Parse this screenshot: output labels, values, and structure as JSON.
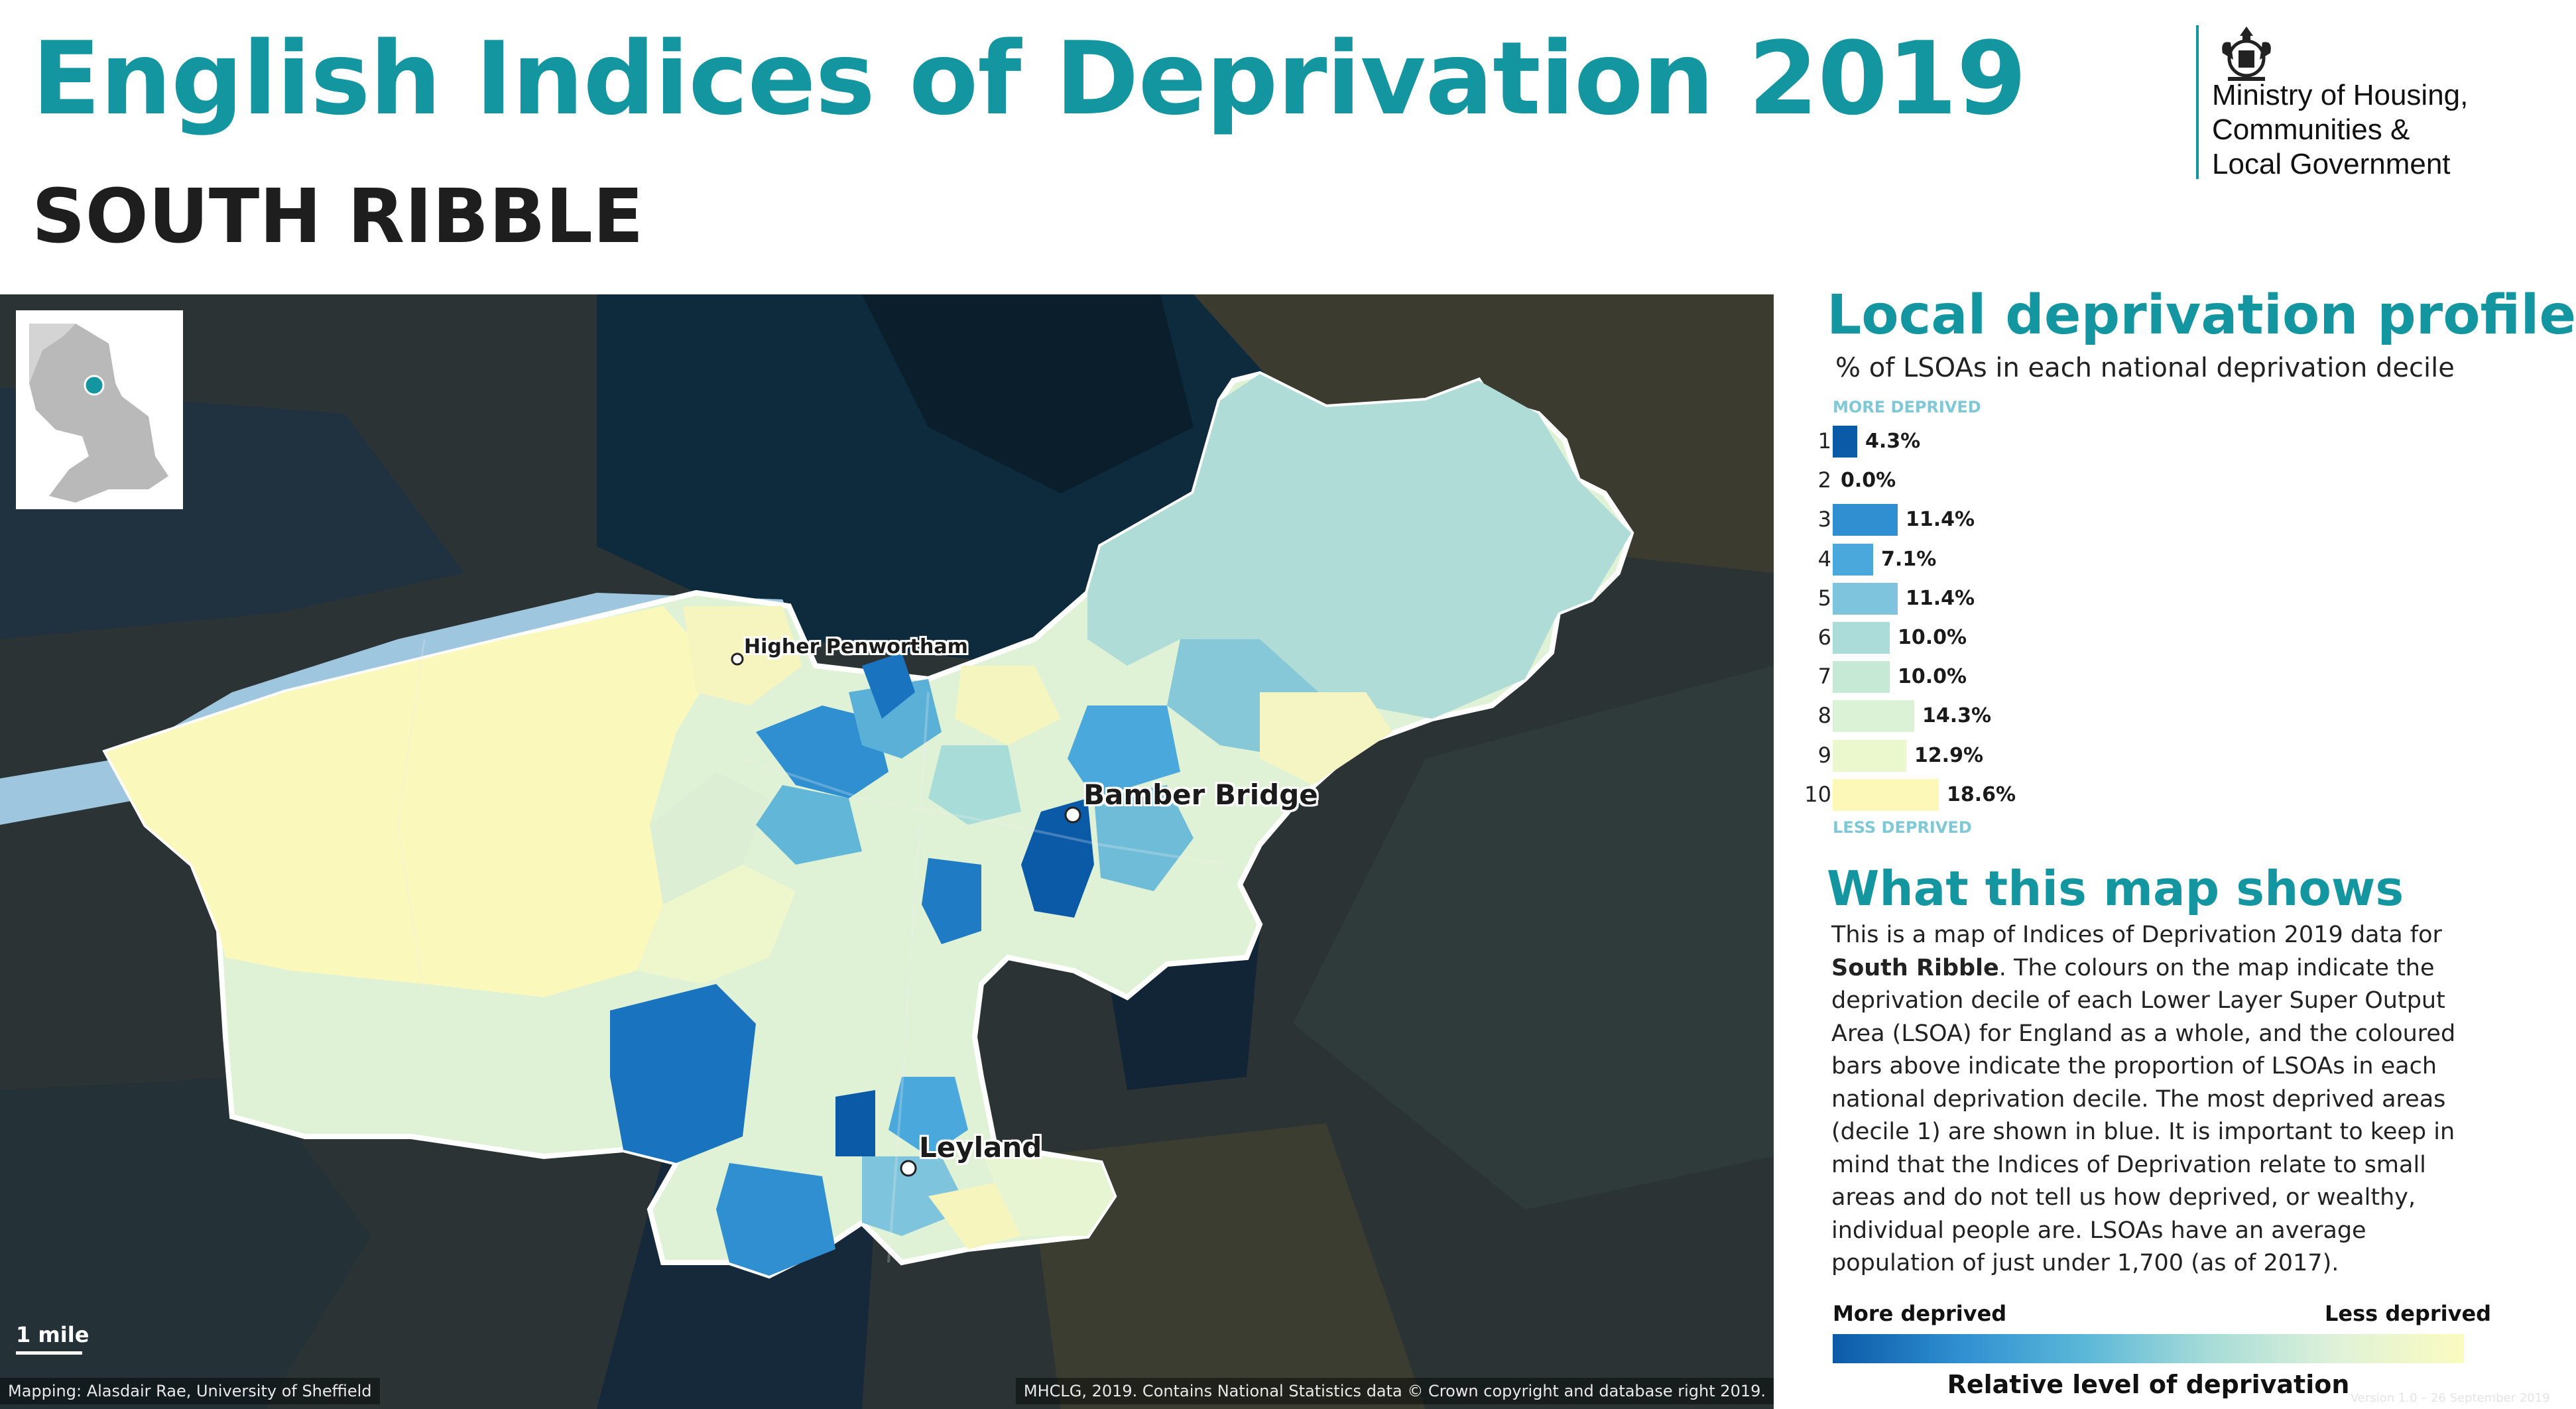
{
  "header": {
    "title": "English Indices of Deprivation 2019",
    "area": "SOUTH RIBBLE"
  },
  "logo": {
    "lines": [
      "Ministry of Housing,",
      "Communities &",
      "Local Government"
    ],
    "icon": "royal-crest-icon"
  },
  "map": {
    "places": [
      {
        "name": "Higher Penwortham",
        "size": "small"
      },
      {
        "name": "Bamber Bridge",
        "size": "large"
      },
      {
        "name": "Leyland",
        "size": "large"
      }
    ],
    "scale_label": "1 mile",
    "credit_left": "Mapping: Alasdair Rae, University of Sheffield",
    "credit_right": "MHCLG, 2019. Contains National Statistics data © Crown copyright and database right 2019."
  },
  "profile": {
    "title": "Local deprivation profile",
    "subtitle": "% of LSOAs in each national deprivation decile",
    "more_label": "MORE DEPRIVED",
    "less_label": "LESS DEPRIVED",
    "deciles": [
      {
        "decile": "1",
        "percent": 4.3,
        "label": "4.3%",
        "color": "#0b5aa8"
      },
      {
        "decile": "2",
        "percent": 0.0,
        "label": "0.0%",
        "color": "#1a73bf"
      },
      {
        "decile": "3",
        "percent": 11.4,
        "label": "11.4%",
        "color": "#2f8fd0"
      },
      {
        "decile": "4",
        "percent": 7.1,
        "label": "7.1%",
        "color": "#4aa8dc"
      },
      {
        "decile": "5",
        "percent": 11.4,
        "label": "11.4%",
        "color": "#7dc4dc"
      },
      {
        "decile": "6",
        "percent": 10.0,
        "label": "10.0%",
        "color": "#acdcda"
      },
      {
        "decile": "7",
        "percent": 10.0,
        "label": "10.0%",
        "color": "#c6e9d6"
      },
      {
        "decile": "8",
        "percent": 14.3,
        "label": "14.3%",
        "color": "#dcf2d6"
      },
      {
        "decile": "9",
        "percent": 12.9,
        "label": "12.9%",
        "color": "#ebf7cc"
      },
      {
        "decile": "10",
        "percent": 18.6,
        "label": "18.6%",
        "color": "#fbf8b8"
      }
    ]
  },
  "explainer": {
    "title": "What this map shows",
    "p1": "This is a map of Indices of Deprivation 2019 data for ",
    "area_bold": "South Ribble",
    "p2": ". The colours on the map indicate the deprivation decile of each Lower Layer Super Output Area (LSOA) for England as a whole, and the coloured bars above indicate the proportion of LSOAs in each national deprivation decile. The most deprived areas (decile 1) are shown in blue. It is important to keep in mind that the Indices of Deprivation relate to small areas and do not tell us how deprived, or wealthy, individual people are. LSOAs have an average population of just under 1,700 (as of 2017)."
  },
  "legend": {
    "more": "More deprived",
    "less": "Less deprived",
    "caption": "Relative level of deprivation"
  },
  "version": "Version 1.0 – 26 September 2019"
}
